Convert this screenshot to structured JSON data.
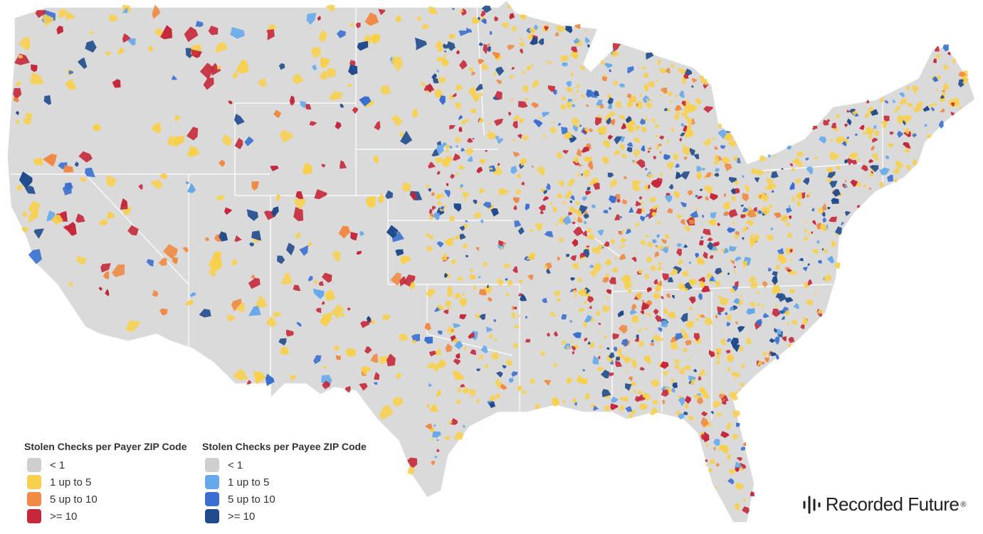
{
  "legend": [
    {
      "title": "Stolen Checks per Payer ZIP Code",
      "items": [
        {
          "label": "< 1",
          "color": "#cfcfcf"
        },
        {
          "label": "1 up to 5",
          "color": "#f7cf4f"
        },
        {
          "label": "5 up to 10",
          "color": "#f08a45"
        },
        {
          "label": ">= 10",
          "color": "#c5283a"
        }
      ]
    },
    {
      "title": "Stolen Checks per Payee ZIP Code",
      "items": [
        {
          "label": "< 1",
          "color": "#cfcfcf"
        },
        {
          "label": "1 up to 5",
          "color": "#66a9ea"
        },
        {
          "label": "5 up to 10",
          "color": "#3a6fd0"
        },
        {
          "label": ">= 10",
          "color": "#1f4a8c"
        }
      ]
    }
  ],
  "brand": {
    "name": "Recorded Future",
    "trademark": "®"
  }
}
